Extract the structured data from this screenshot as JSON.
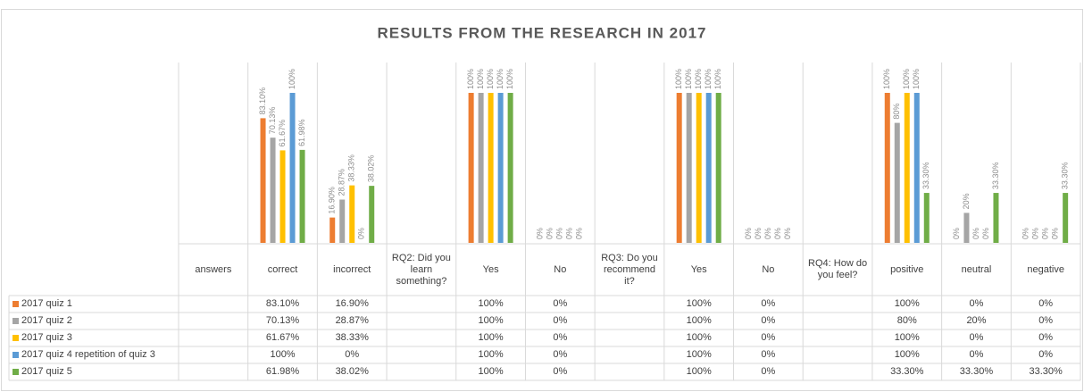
{
  "chart_data": {
    "type": "bar",
    "title": "RESULTS FROM THE RESEARCH IN 2017",
    "categories": [
      "answers",
      "correct",
      "incorrect",
      "RQ2: Did you learn something?",
      "Yes",
      "No",
      "RQ3: Do you recommend it?",
      "Yes",
      "No",
      "RQ4: How do you feel?",
      "positive",
      "neutral",
      "negative"
    ],
    "ylim": [
      0,
      100
    ],
    "series": [
      {
        "name": "2017 quiz 1",
        "color": "#ed7d31",
        "values": [
          null,
          83.1,
          16.9,
          null,
          100,
          0,
          null,
          100,
          0,
          null,
          100,
          0,
          0
        ],
        "value_labels": [
          null,
          "83.10%",
          "16.90%",
          null,
          "100%",
          "0%",
          null,
          "100%",
          "0%",
          null,
          "100%",
          "0%",
          "0%"
        ]
      },
      {
        "name": "2017 quiz 2",
        "color": "#a5a5a5",
        "values": [
          null,
          70.13,
          28.87,
          null,
          100,
          0,
          null,
          100,
          0,
          null,
          80,
          20,
          0
        ],
        "value_labels": [
          null,
          "70.13%",
          "28.87%",
          null,
          "100%",
          "0%",
          null,
          "100%",
          "0%",
          null,
          "80%",
          "20%",
          "0%"
        ]
      },
      {
        "name": "2017 quiz 3",
        "color": "#ffc000",
        "values": [
          null,
          61.67,
          38.33,
          null,
          100,
          0,
          null,
          100,
          0,
          null,
          100,
          0,
          0
        ],
        "value_labels": [
          null,
          "61.67%",
          "38.33%",
          null,
          "100%",
          "0%",
          null,
          "100%",
          "0%",
          null,
          "100%",
          "0%",
          "0%"
        ]
      },
      {
        "name": "2017 quiz 4 repetition of quiz 3",
        "color": "#5b9bd5",
        "values": [
          null,
          100,
          0,
          null,
          100,
          0,
          null,
          100,
          0,
          null,
          100,
          0,
          0
        ],
        "value_labels": [
          null,
          "100%",
          "0%",
          null,
          "100%",
          "0%",
          null,
          "100%",
          "0%",
          null,
          "100%",
          "0%",
          "0%"
        ]
      },
      {
        "name": "2017 quiz 5",
        "color": "#70ad47",
        "values": [
          null,
          61.98,
          38.02,
          null,
          100,
          0,
          null,
          100,
          0,
          null,
          33.3,
          33.3,
          33.3
        ],
        "value_labels": [
          null,
          "61.98%",
          "38.02%",
          null,
          "100%",
          "0%",
          null,
          "100%",
          "0%",
          null,
          "33.30%",
          "33.30%",
          "33.30%"
        ]
      }
    ]
  }
}
